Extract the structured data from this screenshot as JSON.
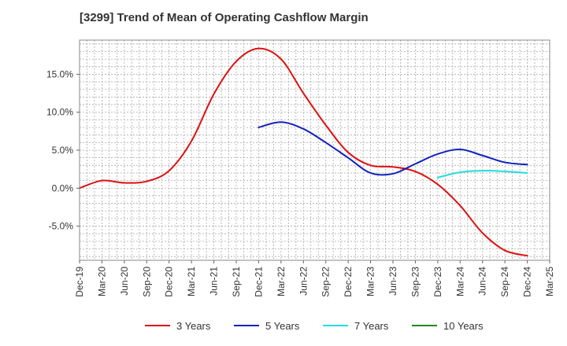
{
  "chart_data": {
    "type": "line",
    "title": "[3299]  Trend of Mean of Operating Cashflow Margin",
    "xlabel": "",
    "ylabel": "",
    "x_ticks": [
      "Dec-19",
      "Mar-20",
      "Jun-20",
      "Sep-20",
      "Dec-20",
      "Mar-21",
      "Jun-21",
      "Sep-21",
      "Dec-21",
      "Mar-22",
      "Jun-22",
      "Sep-22",
      "Dec-22",
      "Mar-23",
      "Jun-23",
      "Sep-23",
      "Dec-23",
      "Mar-24",
      "Jun-24",
      "Sep-24",
      "Dec-24",
      "Mar-25"
    ],
    "y_ticks": [
      15.0,
      10.0,
      5.0,
      0.0,
      -5.0
    ],
    "y_tick_labels": [
      "15.0%",
      "10.0%",
      "5.0%",
      "0.0%",
      "-5.0%"
    ],
    "ylim": [
      -9.5,
      19.5
    ],
    "grid": true,
    "legend_position": "bottom",
    "series": [
      {
        "name": "3 Years",
        "color": "#dd1111",
        "x": [
          "Dec-19",
          "Mar-20",
          "Jun-20",
          "Sep-20",
          "Dec-20",
          "Mar-21",
          "Jun-21",
          "Sep-21",
          "Dec-21",
          "Mar-22",
          "Jun-22",
          "Sep-22",
          "Dec-22",
          "Mar-23",
          "Jun-23",
          "Sep-23",
          "Dec-23",
          "Mar-24",
          "Jun-24",
          "Sep-24",
          "Dec-24"
        ],
        "values": [
          0.0,
          1.0,
          0.7,
          0.9,
          2.3,
          6.2,
          12.4,
          16.7,
          18.4,
          17.0,
          12.5,
          8.3,
          4.7,
          3.0,
          2.8,
          2.2,
          0.5,
          -2.3,
          -5.9,
          -8.2,
          -8.9
        ]
      },
      {
        "name": "5 Years",
        "color": "#1122bb",
        "x": [
          "Dec-21",
          "Mar-22",
          "Jun-22",
          "Sep-22",
          "Dec-22",
          "Mar-23",
          "Jun-23",
          "Sep-23",
          "Dec-23",
          "Mar-24",
          "Jun-24",
          "Sep-24",
          "Dec-24"
        ],
        "values": [
          8.0,
          8.7,
          7.8,
          6.0,
          4.0,
          2.0,
          1.9,
          3.2,
          4.5,
          5.1,
          4.3,
          3.4,
          3.1
        ]
      },
      {
        "name": "7 Years",
        "color": "#22dddd",
        "x": [
          "Dec-23",
          "Mar-24",
          "Jun-24",
          "Sep-24",
          "Dec-24"
        ],
        "values": [
          1.4,
          2.1,
          2.3,
          2.2,
          2.0
        ]
      },
      {
        "name": "10 Years",
        "color": "#228822",
        "x": [],
        "values": []
      }
    ]
  }
}
